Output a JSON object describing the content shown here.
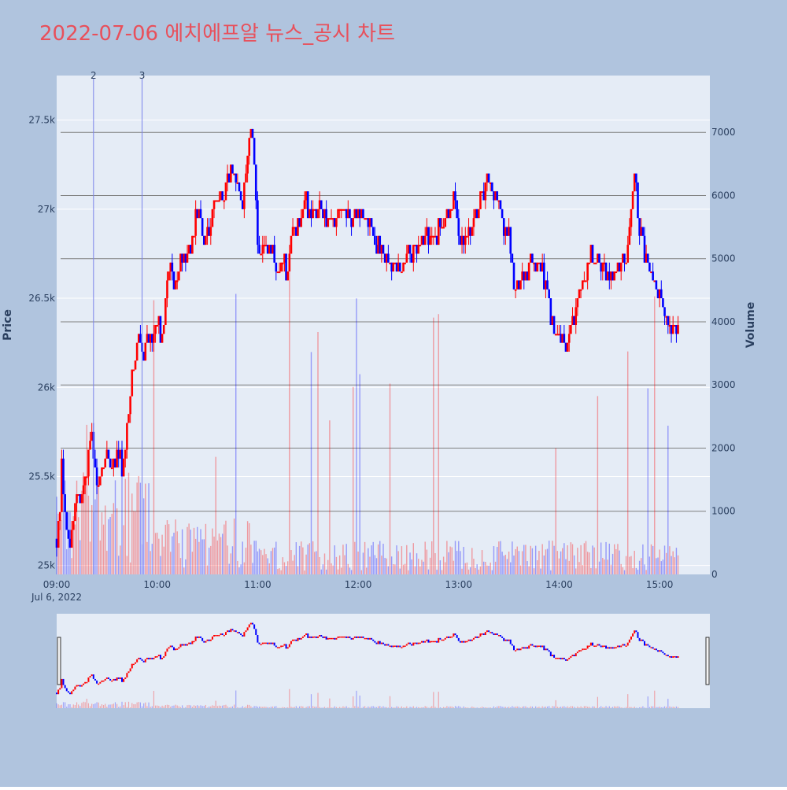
{
  "chart_data": {
    "type": "candlestick",
    "title": "2022-07-06 에치에프알 뉴스_공시 차트",
    "ylabel": "Price",
    "y2label": "Volume",
    "date_label": "Jul 6, 2022",
    "xlim": [
      "09:00",
      "15:30"
    ],
    "ylim": [
      24950,
      27750
    ],
    "y2lim": [
      0,
      7900
    ],
    "x_ticks": [
      "09:00",
      "10:00",
      "11:00",
      "12:00",
      "13:00",
      "14:00",
      "15:00"
    ],
    "y_ticks": [
      {
        "v": 25000,
        "label": "25k"
      },
      {
        "v": 25500,
        "label": "25.5k"
      },
      {
        "v": 26000,
        "label": "26k"
      },
      {
        "v": 26500,
        "label": "26.5k"
      },
      {
        "v": 27000,
        "label": "27k"
      },
      {
        "v": 27500,
        "label": "27.5k"
      }
    ],
    "y2_ticks": [
      0,
      1000,
      2000,
      3000,
      4000,
      5000,
      6000,
      7000
    ],
    "up_color": "#ff0000",
    "down_color": "#0000ff",
    "news_markers": [
      {
        "time": "09:22",
        "label": "2"
      },
      {
        "time": "09:51",
        "label": "3"
      }
    ],
    "price_path": [
      [
        "09:00",
        25150
      ],
      [
        "09:02",
        25300
      ],
      [
        "09:03",
        25600
      ],
      [
        "09:04",
        25400
      ],
      [
        "09:06",
        25200
      ],
      [
        "09:08",
        25100
      ],
      [
        "09:10",
        25250
      ],
      [
        "09:12",
        25400
      ],
      [
        "09:14",
        25350
      ],
      [
        "09:18",
        25500
      ],
      [
        "09:20",
        25700
      ],
      [
        "09:22",
        25650
      ],
      [
        "09:24",
        25450
      ],
      [
        "09:27",
        25500
      ],
      [
        "09:30",
        25650
      ],
      [
        "09:33",
        25550
      ],
      [
        "09:36",
        25650
      ],
      [
        "09:39",
        25550
      ],
      [
        "09:42",
        25750
      ],
      [
        "09:45",
        26050
      ],
      [
        "09:47",
        26150
      ],
      [
        "09:49",
        26300
      ],
      [
        "09:51",
        26200
      ],
      [
        "09:54",
        26250
      ],
      [
        "09:57",
        26300
      ],
      [
        "10:00",
        26350
      ],
      [
        "10:02",
        26300
      ],
      [
        "10:04",
        26400
      ],
      [
        "10:06",
        26600
      ],
      [
        "10:08",
        26600
      ],
      [
        "10:10",
        26550
      ],
      [
        "10:13",
        26650
      ],
      [
        "10:17",
        26750
      ],
      [
        "10:20",
        26800
      ],
      [
        "10:23",
        26950
      ],
      [
        "10:26",
        26950
      ],
      [
        "10:28",
        26800
      ],
      [
        "10:31",
        26850
      ],
      [
        "10:34",
        27050
      ],
      [
        "10:37",
        27050
      ],
      [
        "10:40",
        27100
      ],
      [
        "10:42",
        27200
      ],
      [
        "10:45",
        27250
      ],
      [
        "10:48",
        27100
      ],
      [
        "10:51",
        27050
      ],
      [
        "10:54",
        27300
      ],
      [
        "10:56",
        27450
      ],
      [
        "10:58",
        27300
      ],
      [
        "11:00",
        26800
      ],
      [
        "11:03",
        26750
      ],
      [
        "11:07",
        26800
      ],
      [
        "11:10",
        26700
      ],
      [
        "11:12",
        26650
      ],
      [
        "11:15",
        26700
      ],
      [
        "11:18",
        26650
      ],
      [
        "11:21",
        26850
      ],
      [
        "11:25",
        26900
      ],
      [
        "11:28",
        27050
      ],
      [
        "11:32",
        26950
      ],
      [
        "11:36",
        27000
      ],
      [
        "11:40",
        26950
      ],
      [
        "11:45",
        26950
      ],
      [
        "11:50",
        27000
      ],
      [
        "11:55",
        26950
      ],
      [
        "12:00",
        27000
      ],
      [
        "12:05",
        26950
      ],
      [
        "12:10",
        26800
      ],
      [
        "12:15",
        26750
      ],
      [
        "12:20",
        26700
      ],
      [
        "12:25",
        26650
      ],
      [
        "12:30",
        26750
      ],
      [
        "12:35",
        26800
      ],
      [
        "12:40",
        26850
      ],
      [
        "12:45",
        26850
      ],
      [
        "12:50",
        26900
      ],
      [
        "12:54",
        26950
      ],
      [
        "12:57",
        27100
      ],
      [
        "13:00",
        26850
      ],
      [
        "13:04",
        26850
      ],
      [
        "13:08",
        26900
      ],
      [
        "13:11",
        26950
      ],
      [
        "13:14",
        27100
      ],
      [
        "13:17",
        27150
      ],
      [
        "13:20",
        27100
      ],
      [
        "13:24",
        27050
      ],
      [
        "13:27",
        26900
      ],
      [
        "13:30",
        26850
      ],
      [
        "13:33",
        26600
      ],
      [
        "13:36",
        26600
      ],
      [
        "13:40",
        26650
      ],
      [
        "13:43",
        26700
      ],
      [
        "13:47",
        26700
      ],
      [
        "13:50",
        26650
      ],
      [
        "13:53",
        26550
      ],
      [
        "13:56",
        26350
      ],
      [
        "14:00",
        26300
      ],
      [
        "14:04",
        26250
      ],
      [
        "14:07",
        26350
      ],
      [
        "14:10",
        26450
      ],
      [
        "14:13",
        26550
      ],
      [
        "14:16",
        26650
      ],
      [
        "14:19",
        26750
      ],
      [
        "14:22",
        26700
      ],
      [
        "14:25",
        26700
      ],
      [
        "14:28",
        26650
      ],
      [
        "14:31",
        26650
      ],
      [
        "14:34",
        26650
      ],
      [
        "14:37",
        26700
      ],
      [
        "14:40",
        26650
      ],
      [
        "14:43",
        27000
      ],
      [
        "14:45",
        27200
      ],
      [
        "14:47",
        26950
      ],
      [
        "14:50",
        26800
      ],
      [
        "14:53",
        26700
      ],
      [
        "14:56",
        26600
      ],
      [
        "15:00",
        26500
      ],
      [
        "15:03",
        26450
      ],
      [
        "15:05",
        26400
      ],
      [
        "15:07",
        26300
      ],
      [
        "15:09",
        26350
      ],
      [
        "15:11",
        26300
      ]
    ]
  }
}
